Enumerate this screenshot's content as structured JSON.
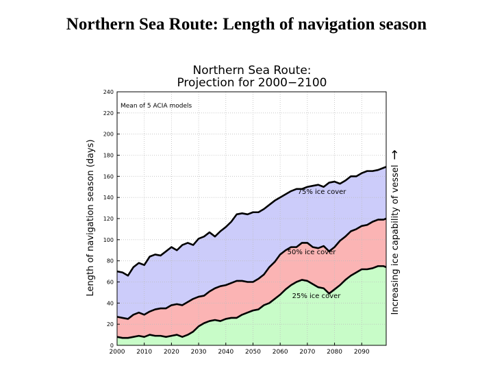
{
  "slide": {
    "title": "Northern Sea Route:  Length of navigation season"
  },
  "chart_data": {
    "type": "area",
    "title": "Northern Sea Route:",
    "subtitle": "Projection for 2000−2100",
    "annotation": "Mean of 5 ACIA models",
    "xlabel": "",
    "ylabel": "Length of navigation season (days)",
    "right_label": "Increasing ice capability of vessel",
    "right_arrow": "→",
    "xlim": [
      2000,
      2099
    ],
    "ylim": [
      0,
      240
    ],
    "x_ticks": [
      "2000",
      "2010",
      "2020",
      "2030",
      "2040",
      "2050",
      "2060",
      "2070",
      "2080",
      "2090"
    ],
    "y_ticks": [
      "0",
      "20",
      "40",
      "60",
      "80",
      "100",
      "120",
      "140",
      "160",
      "180",
      "200",
      "220",
      "240"
    ],
    "grid": true,
    "colors": {
      "ice_75": "#ccccfa",
      "ice_50": "#fbb4b4",
      "ice_25": "#c8fcc8",
      "line": "#000000",
      "grid": "#bdbdbd"
    },
    "x": [
      2000,
      2002,
      2004,
      2006,
      2008,
      2010,
      2012,
      2014,
      2016,
      2018,
      2020,
      2022,
      2024,
      2026,
      2028,
      2030,
      2032,
      2034,
      2036,
      2038,
      2040,
      2042,
      2044,
      2046,
      2048,
      2050,
      2052,
      2054,
      2056,
      2058,
      2060,
      2062,
      2064,
      2066,
      2068,
      2070,
      2072,
      2074,
      2076,
      2078,
      2080,
      2082,
      2084,
      2086,
      2088,
      2090,
      2092,
      2094,
      2096,
      2098,
      2099
    ],
    "series": [
      {
        "name": "75% ice cover",
        "fill": "#ccccfa",
        "values": [
          70,
          69,
          66,
          74,
          78,
          76,
          84,
          86,
          85,
          89,
          93,
          90,
          95,
          97,
          95,
          101,
          103,
          107,
          103,
          108,
          112,
          117,
          124,
          125,
          124,
          126,
          126,
          129,
          133,
          137,
          140,
          143,
          146,
          148,
          148,
          150,
          151,
          152,
          150,
          154,
          155,
          153,
          156,
          160,
          160,
          163,
          165,
          165,
          166,
          168,
          169
        ]
      },
      {
        "name": "50% ice cover",
        "fill": "#fbb4b4",
        "values": [
          27,
          26,
          25,
          29,
          31,
          29,
          32,
          34,
          35,
          35,
          38,
          39,
          38,
          41,
          44,
          46,
          47,
          51,
          54,
          56,
          57,
          59,
          61,
          61,
          60,
          60,
          63,
          67,
          74,
          79,
          86,
          90,
          93,
          93,
          97,
          97,
          93,
          92,
          94,
          89,
          93,
          99,
          103,
          108,
          110,
          113,
          114,
          117,
          119,
          119,
          120
        ]
      },
      {
        "name": "25% ice cover",
        "fill": "#c8fcc8",
        "values": [
          8,
          7,
          7,
          8,
          9,
          8,
          10,
          9,
          9,
          8,
          9,
          10,
          8,
          10,
          13,
          18,
          21,
          23,
          24,
          23,
          25,
          26,
          26,
          29,
          31,
          33,
          34,
          38,
          40,
          44,
          48,
          53,
          57,
          60,
          62,
          61,
          58,
          55,
          54,
          49,
          53,
          57,
          62,
          66,
          69,
          72,
          72,
          73,
          75,
          75,
          74
        ]
      }
    ],
    "labels": [
      "75% ice cover",
      "50% ice cover",
      "25% ice cover"
    ]
  }
}
